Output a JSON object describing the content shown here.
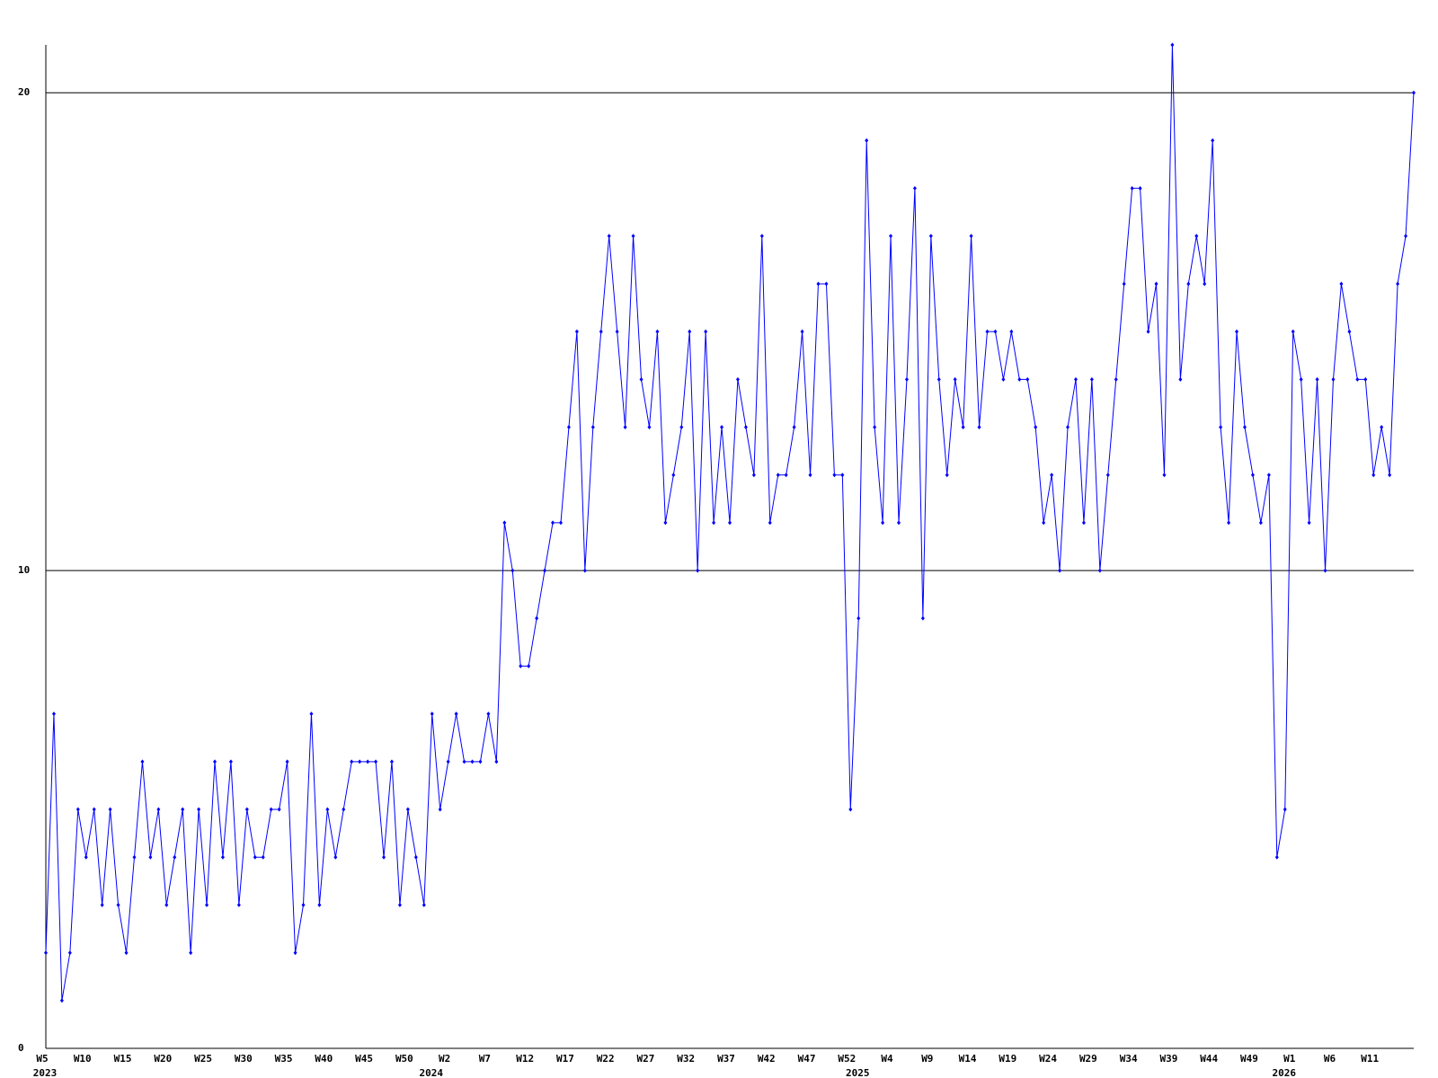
{
  "chart_data": {
    "type": "line",
    "color": "#0000ff",
    "grid": true,
    "ylim": [
      0,
      21
    ],
    "yticks": [
      0,
      10,
      20
    ],
    "categories": [
      "W5",
      null,
      null,
      null,
      null,
      "W10",
      null,
      null,
      null,
      null,
      "W15",
      null,
      null,
      null,
      null,
      "W20",
      null,
      null,
      null,
      null,
      "W25",
      null,
      null,
      null,
      null,
      "W30",
      null,
      null,
      null,
      null,
      "W35",
      null,
      null,
      null,
      null,
      "W40",
      null,
      null,
      null,
      null,
      "W45",
      null,
      null,
      null,
      null,
      "W50",
      null,
      null,
      null,
      null,
      "W2",
      null,
      null,
      null,
      null,
      "W7",
      null,
      null,
      null,
      null,
      "W12",
      null,
      null,
      null,
      null,
      "W17",
      null,
      null,
      null,
      null,
      "W22",
      null,
      null,
      null,
      null,
      "W27",
      null,
      null,
      null,
      null,
      "W32",
      null,
      null,
      null,
      null,
      "W37",
      null,
      null,
      null,
      null,
      "W42",
      null,
      null,
      null,
      null,
      "W47",
      null,
      null,
      null,
      null,
      "W52",
      null,
      null,
      null,
      null,
      "W4",
      null,
      null,
      null,
      null,
      "W9",
      null,
      null,
      null,
      null,
      "W14",
      null,
      null,
      null,
      null,
      "W19",
      null,
      null,
      null,
      null,
      "W24",
      null,
      null,
      null,
      null,
      "W29",
      null,
      null,
      null,
      null,
      "W34",
      null,
      null,
      null,
      null,
      "W39",
      null,
      null,
      null,
      null,
      "W44",
      null,
      null,
      null,
      null,
      "W49",
      null,
      null,
      null,
      null,
      "W1",
      null,
      null,
      null,
      null,
      "W6",
      null,
      null,
      null,
      null,
      "W11",
      null,
      null,
      null,
      null,
      null
    ],
    "year_labels": [
      "2023",
      null,
      null,
      null,
      null,
      null,
      null,
      null,
      null,
      null,
      null,
      null,
      null,
      null,
      null,
      null,
      null,
      null,
      null,
      null,
      null,
      null,
      null,
      null,
      null,
      null,
      null,
      null,
      null,
      null,
      null,
      null,
      null,
      null,
      null,
      null,
      null,
      null,
      null,
      null,
      null,
      null,
      null,
      null,
      null,
      null,
      null,
      null,
      "2024",
      null,
      null,
      null,
      null,
      null,
      null,
      null,
      null,
      null,
      null,
      null,
      null,
      null,
      null,
      null,
      null,
      null,
      null,
      null,
      null,
      null,
      null,
      null,
      null,
      null,
      null,
      null,
      null,
      null,
      null,
      null,
      null,
      null,
      null,
      null,
      null,
      null,
      null,
      null,
      null,
      null,
      null,
      null,
      null,
      null,
      null,
      null,
      null,
      null,
      null,
      null,
      null,
      "2025",
      null,
      null,
      null,
      null,
      null,
      null,
      null,
      null,
      null,
      null,
      null,
      null,
      null,
      null,
      null,
      null,
      null,
      null,
      null,
      null,
      null,
      null,
      null,
      null,
      null,
      null,
      null,
      null,
      null,
      null,
      null,
      null,
      null,
      null,
      null,
      null,
      null,
      null,
      null,
      null,
      null,
      null,
      null,
      null,
      null,
      null,
      null,
      null,
      null,
      null,
      null,
      null,
      "2026",
      null,
      null,
      null,
      null,
      null,
      null,
      null,
      null,
      null,
      null,
      null,
      null,
      null,
      null,
      null,
      null
    ],
    "values": [
      2,
      7,
      1,
      2,
      5,
      4,
      5,
      3,
      5,
      3,
      2,
      4,
      6,
      4,
      5,
      3,
      4,
      5,
      2,
      5,
      3,
      6,
      4,
      6,
      3,
      5,
      4,
      4,
      5,
      5,
      6,
      2,
      3,
      7,
      3,
      5,
      4,
      5,
      6,
      6,
      6,
      6,
      4,
      6,
      3,
      5,
      4,
      3,
      7,
      5,
      6,
      7,
      6,
      6,
      6,
      7,
      6,
      11,
      10,
      8,
      8,
      9,
      10,
      11,
      11,
      13,
      15,
      10,
      13,
      15,
      17,
      15,
      13,
      17,
      14,
      13,
      15,
      11,
      12,
      13,
      15,
      10,
      15,
      11,
      13,
      11,
      14,
      13,
      12,
      17,
      11,
      12,
      12,
      13,
      15,
      12,
      16,
      16,
      12,
      12,
      5,
      9,
      19,
      13,
      11,
      17,
      11,
      14,
      18,
      9,
      17,
      14,
      12,
      14,
      13,
      17,
      13,
      15,
      15,
      14,
      15,
      14,
      14,
      13,
      11,
      12,
      10,
      13,
      14,
      11,
      14,
      10,
      12,
      14,
      16,
      18,
      18,
      15,
      16,
      12,
      21,
      14,
      16,
      17,
      16,
      19,
      13,
      11,
      15,
      13,
      12,
      11,
      12,
      4,
      5,
      15,
      14,
      11,
      14,
      10,
      14,
      16,
      15,
      14,
      14,
      12,
      13,
      12,
      16,
      17,
      20
    ]
  }
}
